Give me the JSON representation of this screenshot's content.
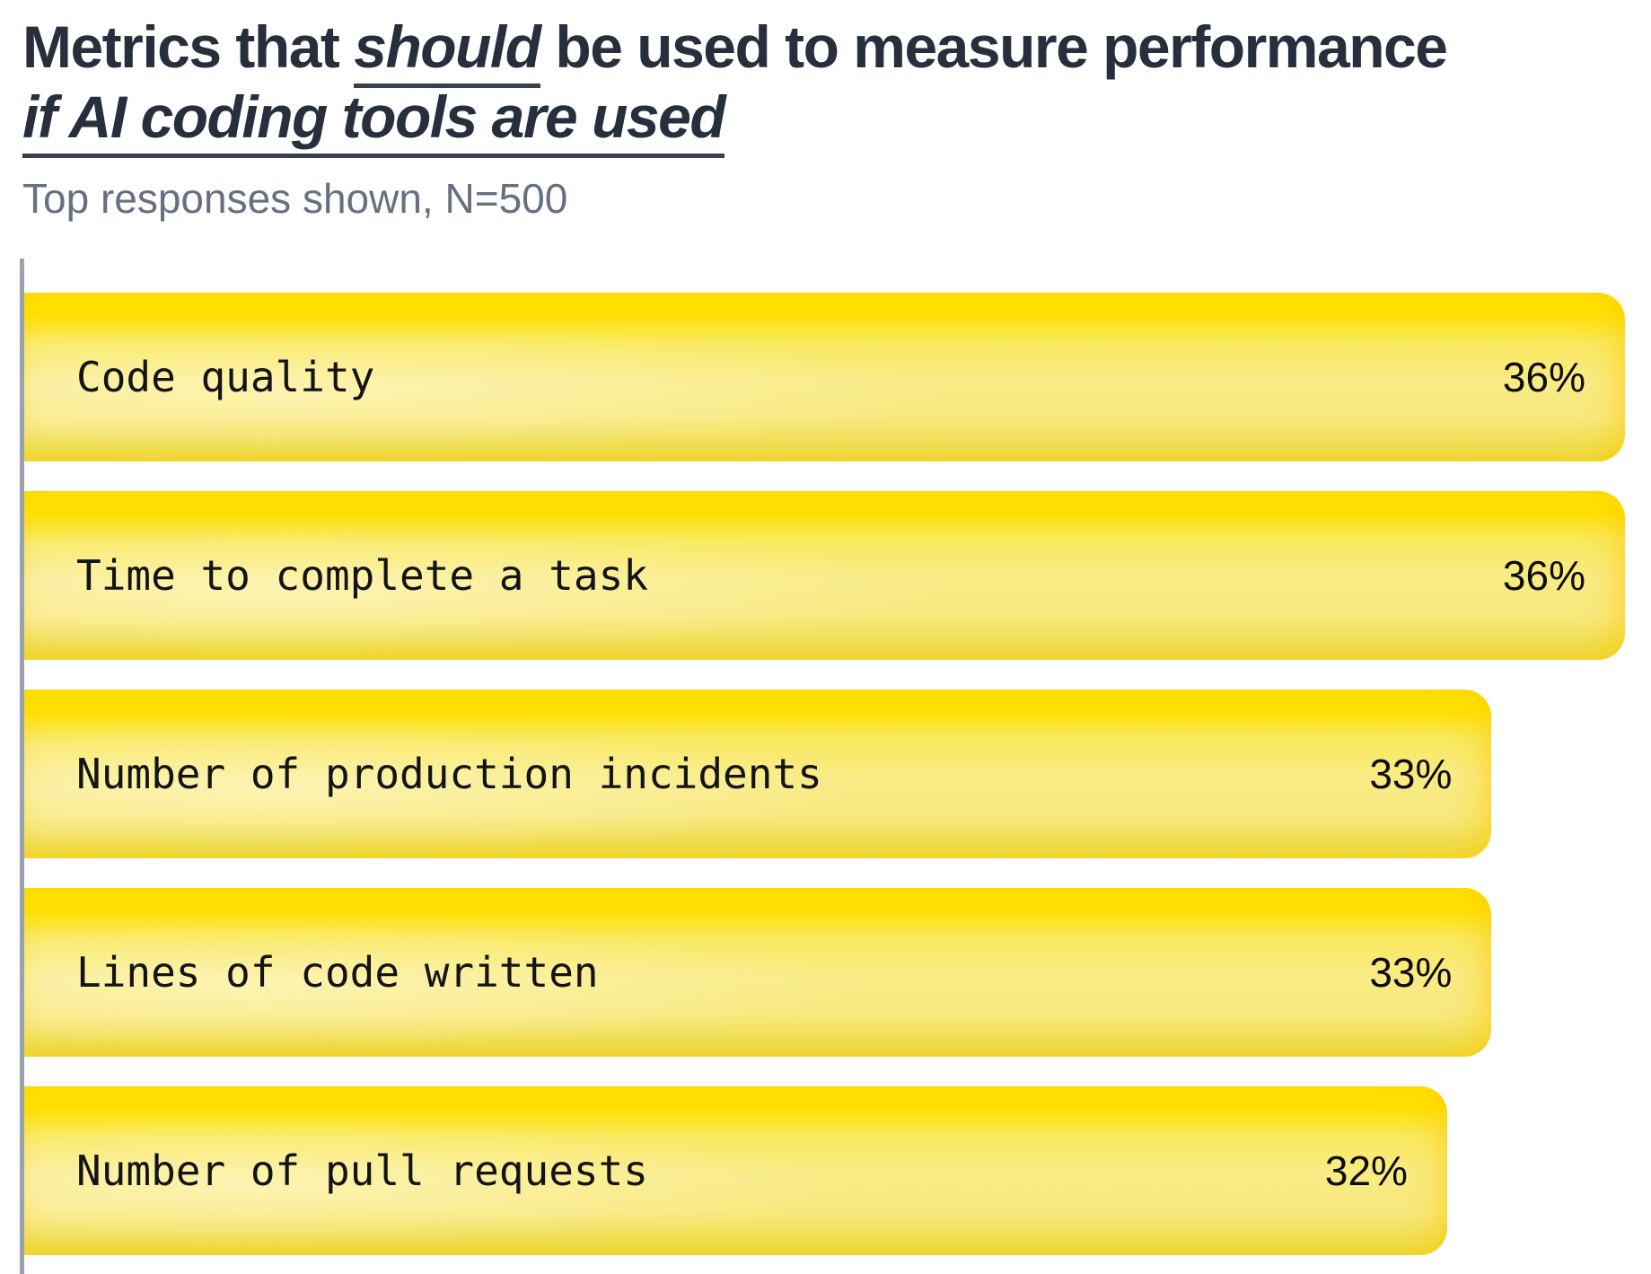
{
  "header": {
    "title": {
      "line1_pre": "Metrics that ",
      "line1_emphasis": "should",
      "line1_post": " be used to measure performance",
      "line2": "if AI coding tools are used"
    },
    "subtitle": "Top responses shown, N=500"
  },
  "chart_data": {
    "type": "bar",
    "orientation": "horizontal",
    "title": "Metrics that should be used to measure performance if AI coding tools are used",
    "subtitle": "Top responses shown, N=500",
    "categories": [
      "Code quality",
      "Time to complete a task",
      "Number of production incidents",
      "Lines of code written",
      "Number of pull requests"
    ],
    "values": [
      36,
      36,
      33,
      33,
      32
    ],
    "value_suffix": "%",
    "xlim": [
      0,
      36.6
    ],
    "grid": false,
    "legend": false,
    "colors": {
      "bar_top": "#ffe100",
      "bar_mid": "#f9ea80",
      "bar_bottom": "#eeda40",
      "axis": "#9aa2ab",
      "title": "#272f3c",
      "subtitle": "#667080",
      "label": "#141414"
    }
  }
}
